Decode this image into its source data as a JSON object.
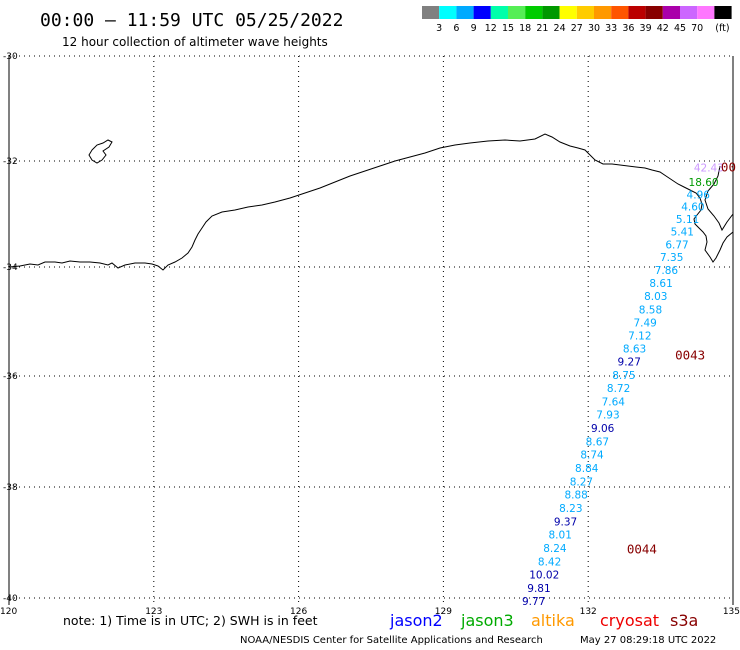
{
  "header": {
    "title": "00:00 – 11:59 UTC 05/25/2022",
    "subtitle": "12 hour collection of altimeter wave heights"
  },
  "colorbar": {
    "colors": [
      "#808080",
      "#00ffff",
      "#00aaff",
      "#0000ff",
      "#00ffaa",
      "#55ee55",
      "#00cc00",
      "#009900",
      "#ffff00",
      "#ffcc00",
      "#ff9900",
      "#ff5500",
      "#bb0000",
      "#880000",
      "#aa00aa",
      "#cc66ff",
      "#ff77ff",
      "#000000"
    ],
    "labels": [
      "3",
      "6",
      "9",
      "12",
      "15",
      "18",
      "21",
      "24",
      "27",
      "30",
      "33",
      "36",
      "39",
      "42",
      "45",
      "70"
    ],
    "unit": "(ft)"
  },
  "axes": {
    "lat_labels": [
      "-30",
      "-32",
      "-34",
      "-36",
      "-38",
      "-40"
    ],
    "lat_values": [
      -30,
      -32,
      -34,
      -36,
      -38,
      -40
    ],
    "lon_labels": [
      "120",
      "123",
      "126",
      "129",
      "132",
      "135"
    ],
    "lon_values": [
      120,
      123,
      126,
      129,
      132,
      135
    ]
  },
  "swh_track": {
    "value_labels": [
      "42.43",
      "18.60",
      "4.96",
      "4.60",
      "5.11",
      "5.41",
      "6.77",
      "7.35",
      "7.86",
      "8.61",
      "8.03",
      "8.58",
      "7.49",
      "7.12",
      "8.63",
      "9.27",
      "8.75",
      "8.72",
      "7.64",
      "7.93",
      "9.06",
      "8.67",
      "8.74",
      "8.84",
      "8.27",
      "8.88",
      "8.23",
      "9.37",
      "8.01",
      "8.24",
      "8.42",
      "10.02",
      "9.81",
      "9.77"
    ],
    "lat": [
      -32.2,
      -32.47,
      -32.71,
      -32.93,
      -33.17,
      -33.41,
      -33.65,
      -33.89,
      -34.13,
      -34.37,
      -34.61,
      -34.85,
      -35.09,
      -35.33,
      -35.57,
      -35.81,
      -36.05,
      -36.29,
      -36.53,
      -36.77,
      -37.01,
      -37.25,
      -37.49,
      -37.73,
      -37.97,
      -38.21,
      -38.45,
      -38.69,
      -38.93,
      -39.17,
      -39.41,
      -39.65,
      -39.89,
      -40.13
    ],
    "lon": [
      134.5,
      134.39,
      134.28,
      134.17,
      134.06,
      133.95,
      133.84,
      133.73,
      133.62,
      133.51,
      133.4,
      133.29,
      133.18,
      133.07,
      132.96,
      132.85,
      132.74,
      132.63,
      132.52,
      132.41,
      132.3,
      132.19,
      132.08,
      131.97,
      131.86,
      131.75,
      131.64,
      131.53,
      131.42,
      131.31,
      131.2,
      131.09,
      130.98,
      130.87
    ],
    "colors": [
      "#cc99ff",
      "#009900",
      "#00aaff",
      "#00aaff",
      "#00aaff",
      "#00aaff",
      "#00aaff",
      "#00aaff",
      "#00aaff",
      "#00aaff",
      "#00aaff",
      "#00aaff",
      "#00aaff",
      "#00aaff",
      "#00aaff",
      "#0000aa",
      "#00aaff",
      "#00aaff",
      "#00aaff",
      "#00aaff",
      "#0000aa",
      "#00aaff",
      "#00aaff",
      "#00aaff",
      "#00aaff",
      "#00aaff",
      "#00aaff",
      "#0000aa",
      "#00aaff",
      "#00aaff",
      "#00aaff",
      "#0000aa",
      "#0000aa",
      "#0000aa"
    ]
  },
  "time_markers": [
    {
      "label": "0043",
      "lat": -35.7,
      "lon": 133.8
    },
    {
      "label": "0044",
      "lat": -39.2,
      "lon": 132.8
    },
    {
      "label": "00",
      "lat": -32.2,
      "lon": 134.75
    }
  ],
  "footer": {
    "note": "note:  1) Time is in UTC; 2) SWH is in feet",
    "satellites": [
      {
        "name": "jason2",
        "color": "#0000ff"
      },
      {
        "name": "jason3",
        "color": "#00aa00"
      },
      {
        "name": "altika",
        "color": "#ff9900"
      },
      {
        "name": "cryosat",
        "color": "#ee0000"
      },
      {
        "name": "s3a",
        "color": "#880000"
      }
    ],
    "credit": "NOAA/NESDIS Center for Satellite Applications and Research",
    "timestamp": "May 27 08:29:18 UTC 2022"
  }
}
